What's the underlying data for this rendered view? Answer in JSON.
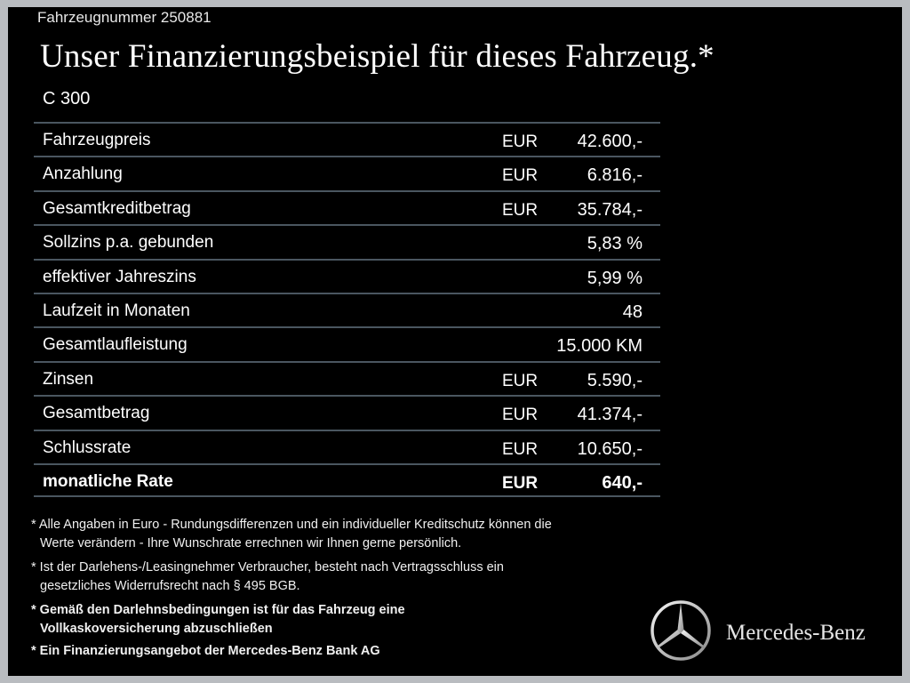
{
  "vehicle_number": "Fahrzeugnummer 250881",
  "title": "Unser Finanzierungsbeispiel für dieses Fahrzeug.*",
  "model": "C 300",
  "table": {
    "rows": [
      {
        "label": "Fahrzeugpreis",
        "currency": "EUR",
        "value": "42.600,-"
      },
      {
        "label": "Anzahlung",
        "currency": "EUR",
        "value": "6.816,-"
      },
      {
        "label": "Gesamtkreditbetrag",
        "currency": "EUR",
        "value": "35.784,-"
      },
      {
        "label": "Sollzins p.a. gebunden",
        "value": "5,83 %"
      },
      {
        "label": "effektiver Jahreszins",
        "value": "5,99 %"
      },
      {
        "label": "Laufzeit in Monaten",
        "value": "48"
      },
      {
        "label": "Gesamtlaufleistung",
        "value": "15.000 KM"
      },
      {
        "label": "Zinsen",
        "currency": "EUR",
        "value": "5.590,-"
      },
      {
        "label": "Gesamtbetrag",
        "currency": "EUR",
        "value": "41.374,-"
      },
      {
        "label": "Schlussrate",
        "currency": "EUR",
        "value": "10.650,-"
      },
      {
        "label": "monatliche Rate",
        "currency": "EUR",
        "value": "640,-"
      }
    ]
  },
  "footnotes": [
    {
      "lines": [
        "* Alle Angaben in Euro - Rundungsdifferenzen und ein individueller Kreditschutz können die",
        "Werte verändern - Ihre Wunschrate errechnen wir Ihnen gerne persönlich."
      ]
    },
    {
      "lines": [
        "* Ist der Darlehens-/Leasingnehmer Verbraucher, besteht nach Vertragsschluss ein",
        "gesetzliches  Widerrufsrecht nach § 495 BGB."
      ]
    },
    {
      "lines": [
        "* Gemäß den Darlehnsbedingungen ist für das Fahrzeug eine",
        "Vollkaskoversicherung abzuschließen"
      ]
    },
    {
      "lines": [
        "* Ein Finanzierungsangebot der Mercedes-Benz Bank AG"
      ]
    }
  ],
  "brand": "Mercedes-Benz"
}
